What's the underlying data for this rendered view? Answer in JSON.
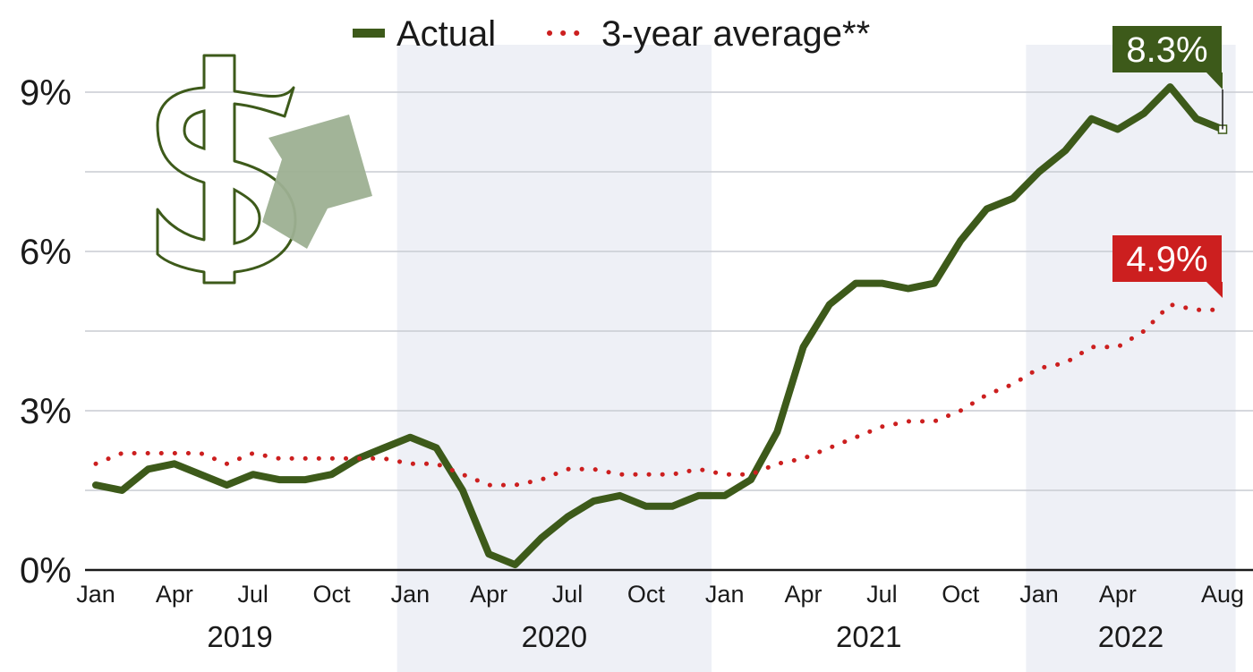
{
  "chart_data": {
    "type": "line",
    "title": "",
    "xlabel": "",
    "ylabel": "",
    "ylim": [
      0,
      9.6
    ],
    "y_ticks": [
      {
        "value": 0,
        "label": "0%"
      },
      {
        "value": 3,
        "label": "3%"
      },
      {
        "value": 6,
        "label": "6%"
      },
      {
        "value": 9,
        "label": "9%"
      }
    ],
    "grid": true,
    "legend_position": "top-center",
    "x": [
      "2019-01",
      "2019-02",
      "2019-03",
      "2019-04",
      "2019-05",
      "2019-06",
      "2019-07",
      "2019-08",
      "2019-09",
      "2019-10",
      "2019-11",
      "2019-12",
      "2020-01",
      "2020-02",
      "2020-03",
      "2020-04",
      "2020-05",
      "2020-06",
      "2020-07",
      "2020-08",
      "2020-09",
      "2020-10",
      "2020-11",
      "2020-12",
      "2021-01",
      "2021-02",
      "2021-03",
      "2021-04",
      "2021-05",
      "2021-06",
      "2021-07",
      "2021-08",
      "2021-09",
      "2021-10",
      "2021-11",
      "2021-12",
      "2022-01",
      "2022-02",
      "2022-03",
      "2022-04",
      "2022-05",
      "2022-06",
      "2022-07",
      "2022-08"
    ],
    "x_ticks": [
      {
        "index": 0,
        "label": "Jan"
      },
      {
        "index": 3,
        "label": "Apr"
      },
      {
        "index": 6,
        "label": "Jul"
      },
      {
        "index": 9,
        "label": "Oct"
      },
      {
        "index": 12,
        "label": "Jan"
      },
      {
        "index": 15,
        "label": "Apr"
      },
      {
        "index": 18,
        "label": "Jul"
      },
      {
        "index": 21,
        "label": "Oct"
      },
      {
        "index": 24,
        "label": "Jan"
      },
      {
        "index": 27,
        "label": "Apr"
      },
      {
        "index": 30,
        "label": "Jul"
      },
      {
        "index": 33,
        "label": "Oct"
      },
      {
        "index": 36,
        "label": "Jan"
      },
      {
        "index": 39,
        "label": "Apr"
      },
      {
        "index": 43,
        "label": "Aug"
      }
    ],
    "years": [
      {
        "label": "2019",
        "start": 0,
        "end": 11,
        "shaded": false
      },
      {
        "label": "2020",
        "start": 12,
        "end": 23,
        "shaded": true
      },
      {
        "label": "2021",
        "start": 24,
        "end": 35,
        "shaded": false
      },
      {
        "label": "2022",
        "start": 36,
        "end": 43,
        "shaded": true
      }
    ],
    "series": [
      {
        "name": "Actual",
        "style": "solid",
        "color": "#3d5a1a",
        "values": [
          1.6,
          1.5,
          1.9,
          2.0,
          1.8,
          1.6,
          1.8,
          1.7,
          1.7,
          1.8,
          2.1,
          2.3,
          2.5,
          2.3,
          1.5,
          0.3,
          0.1,
          0.6,
          1.0,
          1.3,
          1.4,
          1.2,
          1.2,
          1.4,
          1.4,
          1.7,
          2.6,
          4.2,
          5.0,
          5.4,
          5.4,
          5.3,
          5.4,
          6.2,
          6.8,
          7.0,
          7.5,
          7.9,
          8.5,
          8.3,
          8.6,
          9.1,
          8.5,
          8.3
        ],
        "callout": "8.3%"
      },
      {
        "name": "3-year average**",
        "style": "dotted",
        "color": "#cc1f1f",
        "values": [
          2.0,
          2.2,
          2.2,
          2.2,
          2.2,
          2.0,
          2.2,
          2.1,
          2.1,
          2.1,
          2.1,
          2.1,
          2.0,
          2.0,
          1.8,
          1.6,
          1.6,
          1.7,
          1.9,
          1.9,
          1.8,
          1.8,
          1.8,
          1.9,
          1.8,
          1.8,
          2.0,
          2.1,
          2.3,
          2.5,
          2.7,
          2.8,
          2.8,
          3.0,
          3.3,
          3.5,
          3.8,
          3.9,
          4.2,
          4.2,
          4.5,
          5.0,
          4.9,
          4.9
        ],
        "callout": "4.9%"
      }
    ]
  },
  "colors": {
    "actual": "#3d5a1a",
    "average": "#cc1f1f",
    "shade": "#eef0f6",
    "grid": "#c9ccd2",
    "icon_dollar_stroke": "#3d5a1a",
    "icon_arrow_fill": "#9db092"
  },
  "decorations": {
    "icon": "dollar-sign-with-up-arrow-icon"
  }
}
